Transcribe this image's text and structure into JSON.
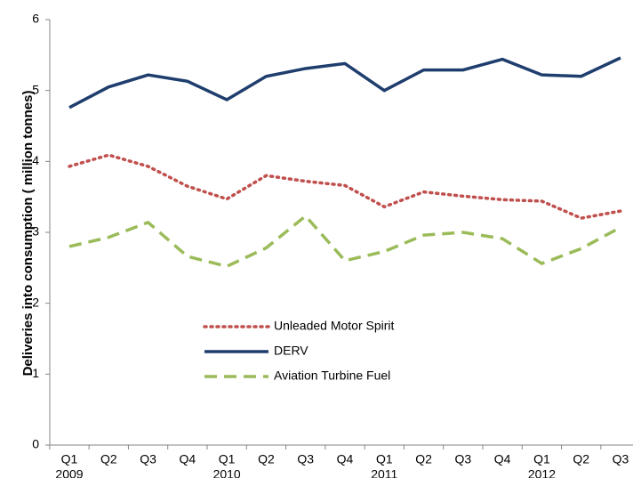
{
  "chart_data": {
    "type": "line",
    "y_label": "Deliveries into consumption ( million tonnes)",
    "categories": [
      "Q1",
      "Q2",
      "Q3",
      "Q4",
      "Q1",
      "Q2",
      "Q3",
      "Q4",
      "Q1",
      "Q2",
      "Q3",
      "Q4",
      "Q1",
      "Q2",
      "Q3"
    ],
    "category_groups": [
      "2009",
      null,
      null,
      null,
      "2010",
      null,
      null,
      null,
      "2011",
      null,
      null,
      null,
      "2012",
      null,
      null
    ],
    "series": [
      {
        "name": "Unleaded Motor Spirit",
        "color": "#c0504d",
        "dash": "dotted",
        "values": [
          3.93,
          4.09,
          3.93,
          3.65,
          3.47,
          3.8,
          3.72,
          3.66,
          3.36,
          3.57,
          3.51,
          3.46,
          3.44,
          3.2,
          3.3
        ]
      },
      {
        "name": "DERV",
        "color": "#1f3e6e",
        "dash": "solid",
        "values": [
          4.76,
          5.05,
          5.22,
          5.13,
          4.87,
          5.2,
          5.31,
          5.38,
          5.0,
          5.29,
          5.29,
          5.44,
          5.22,
          5.2,
          5.46
        ]
      },
      {
        "name": "Aviation Turbine Fuel",
        "color": "#9bbb59",
        "dash": "dashed",
        "values": [
          2.8,
          2.93,
          3.14,
          2.66,
          2.52,
          2.78,
          3.23,
          2.6,
          2.73,
          2.96,
          3.0,
          2.91,
          2.56,
          2.77,
          3.07
        ]
      }
    ],
    "ylim": [
      0,
      6
    ],
    "yticks": [
      0,
      1,
      2,
      3,
      4,
      5,
      6
    ],
    "grid": false,
    "legend": "lower center"
  }
}
